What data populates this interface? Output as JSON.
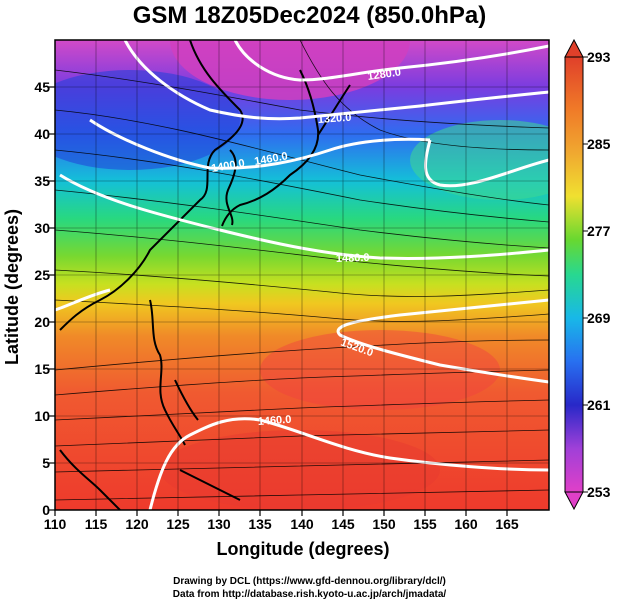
{
  "title": "GSM 18Z05Dec2024 (850.0hPa)",
  "x_axis": {
    "label": "Longitude (degrees)",
    "ticks": [
      "110",
      "115",
      "120",
      "125",
      "130",
      "135",
      "140",
      "145",
      "150",
      "155",
      "160",
      "165"
    ],
    "range": [
      110,
      170
    ]
  },
  "y_axis": {
    "label": "Latitude (degrees)",
    "ticks": [
      "0",
      "5",
      "10",
      "15",
      "20",
      "25",
      "30",
      "35",
      "40",
      "45"
    ],
    "range": [
      0,
      50
    ]
  },
  "colorbar": {
    "ticks": [
      "293",
      "285",
      "277",
      "269",
      "261",
      "253"
    ],
    "range": [
      253,
      293
    ]
  },
  "contours": [
    {
      "label": "1280.0",
      "lat": 47
    },
    {
      "label": "1320.0",
      "lat": 44
    },
    {
      "label": "1400.0",
      "lat": 37
    },
    {
      "label": "1460.0",
      "lat": 38
    },
    {
      "label": "1480.0",
      "lat": 28
    },
    {
      "label": "1520.0",
      "lat": 19
    },
    {
      "label": "1460.0",
      "lat": 9
    }
  ],
  "credits": [
    "Drawing by DCL (https://www.gfd-dennou.org/library/dcl/)",
    "Data from http://database.rish.kyoto-u.ac.jp/arch/jmadata/"
  ]
}
